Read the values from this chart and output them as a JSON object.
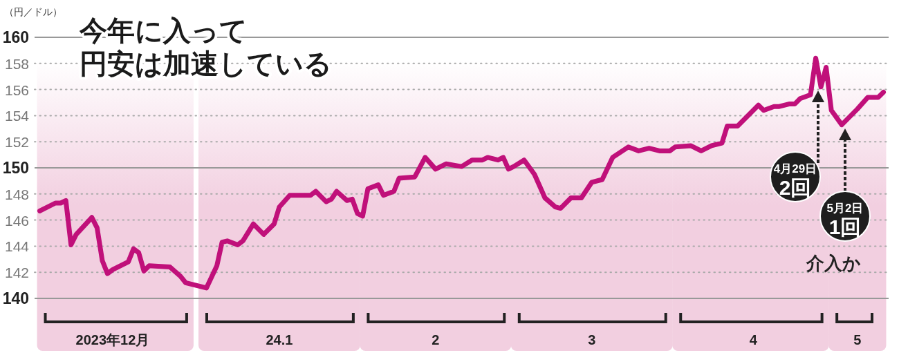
{
  "chart_data": {
    "type": "line",
    "title": "今年に入って",
    "subtitle": "円安は加速している",
    "ylabel": "（円／ドル）",
    "x": [
      "2023-12-01",
      "2023-12-04",
      "2023-12-05",
      "2023-12-06",
      "2023-12-07",
      "2023-12-08",
      "2023-12-11",
      "2023-12-12",
      "2023-12-13",
      "2023-12-14",
      "2023-12-15",
      "2023-12-18",
      "2023-12-19",
      "2023-12-20",
      "2023-12-21",
      "2023-12-22",
      "2023-12-26",
      "2023-12-28",
      "2023-12-29",
      "2024-01-02",
      "2024-01-04",
      "2024-01-05",
      "2024-01-06",
      "2024-01-08",
      "2024-01-09",
      "2024-01-11",
      "2024-01-13",
      "2024-01-15",
      "2024-01-16",
      "2024-01-18",
      "2024-01-22",
      "2024-01-23",
      "2024-01-25",
      "2024-01-26",
      "2024-01-27",
      "2024-01-29",
      "2024-01-30",
      "2024-01-31",
      "2024-02-01",
      "2024-02-02",
      "2024-02-04",
      "2024-02-05",
      "2024-02-07",
      "2024-02-08",
      "2024-02-11",
      "2024-02-13",
      "2024-02-15",
      "2024-02-17",
      "2024-02-20",
      "2024-02-22",
      "2024-02-24",
      "2024-02-25",
      "2024-02-27",
      "2024-02-28",
      "2024-02-29",
      "2024-03-01",
      "2024-03-03",
      "2024-03-05",
      "2024-03-07",
      "2024-03-09",
      "2024-03-10",
      "2024-03-12",
      "2024-03-14",
      "2024-03-16",
      "2024-03-18",
      "2024-03-20",
      "2024-03-23",
      "2024-03-25",
      "2024-03-27",
      "2024-03-29",
      "2024-03-31",
      "2024-04-01",
      "2024-04-04",
      "2024-04-06",
      "2024-04-08",
      "2024-04-10",
      "2024-04-11",
      "2024-04-13",
      "2024-04-17",
      "2024-04-18",
      "2024-04-20",
      "2024-04-21",
      "2024-04-23",
      "2024-04-24",
      "2024-04-25",
      "2024-04-27",
      "2024-04-28",
      "2024-04-29",
      "2024-04-30",
      "2024-05-01",
      "2024-05-03",
      "2024-05-06",
      "2024-05-08",
      "2024-05-10",
      "2024-05-11"
    ],
    "series": [
      {
        "color": "#c0107a",
        "values": [
          146.7,
          147.3,
          147.3,
          147.5,
          144.1,
          144.9,
          146.2,
          145.4,
          142.9,
          141.9,
          142.2,
          142.8,
          143.8,
          143.5,
          142.1,
          142.5,
          142.4,
          141.7,
          141.2,
          140.8,
          142.5,
          144.3,
          144.4,
          144.1,
          144.4,
          145.7,
          144.9,
          145.7,
          147.0,
          147.9,
          147.9,
          148.2,
          147.4,
          147.6,
          148.2,
          147.5,
          147.6,
          146.5,
          146.3,
          148.4,
          148.7,
          147.9,
          148.2,
          149.2,
          149.3,
          150.8,
          149.9,
          150.3,
          150.1,
          150.6,
          150.6,
          150.8,
          150.6,
          150.8,
          149.9,
          150.1,
          150.6,
          149.5,
          147.7,
          147.0,
          146.9,
          147.7,
          147.7,
          148.9,
          149.1,
          150.8,
          151.6,
          151.3,
          151.5,
          151.3,
          151.3,
          151.6,
          151.7,
          151.3,
          151.7,
          151.9,
          153.2,
          153.2,
          154.8,
          154.4,
          154.7,
          154.7,
          154.9,
          154.9,
          155.3,
          155.6,
          158.4,
          156.2,
          157.7,
          154.4,
          153.3,
          154.5,
          155.4,
          155.4,
          155.8
        ]
      }
    ],
    "xlim": [
      "2023-11-30",
      "2024-05-12"
    ],
    "ylim": [
      140,
      160
    ],
    "yticks": [
      140,
      142,
      144,
      146,
      148,
      150,
      152,
      154,
      156,
      158,
      160
    ],
    "grid": "y",
    "ref_lines": [
      {
        "axis": "y",
        "value": 150,
        "color": "#999999"
      }
    ],
    "xticks": [
      {
        "value": "2023-12-15",
        "label": "2023年12月"
      },
      {
        "value": "2024-01-16",
        "label": "24.1"
      },
      {
        "value": "2024-02-15",
        "label": "2"
      },
      {
        "value": "2024-03-16",
        "label": "3"
      },
      {
        "value": "2024-04-16",
        "label": "4"
      },
      {
        "value": "2024-05-06",
        "label": "5"
      }
    ],
    "bands": [
      {
        "axis": "x",
        "from": "2023-12-01",
        "to": "2023-12-30",
        "color": "#f2cfe0"
      },
      {
        "axis": "x",
        "from": "2024-01-01",
        "to": "2024-01-31",
        "color": "#f2cfe0"
      },
      {
        "axis": "x",
        "from": "2024-02-01",
        "to": "2024-02-29",
        "color": "#f2cfe0"
      },
      {
        "axis": "x",
        "from": "2024-03-01",
        "to": "2024-03-31",
        "color": "#f2cfe0"
      },
      {
        "axis": "x",
        "from": "2024-04-01",
        "to": "2024-04-30",
        "color": "#f2cfe0"
      },
      {
        "axis": "x",
        "from": "2024-05-01",
        "to": "2024-05-11",
        "color": "#f2cfe0"
      }
    ],
    "annotations": [
      "4月29日\n2回",
      "5月2日\n1回",
      "介入か"
    ]
  }
}
